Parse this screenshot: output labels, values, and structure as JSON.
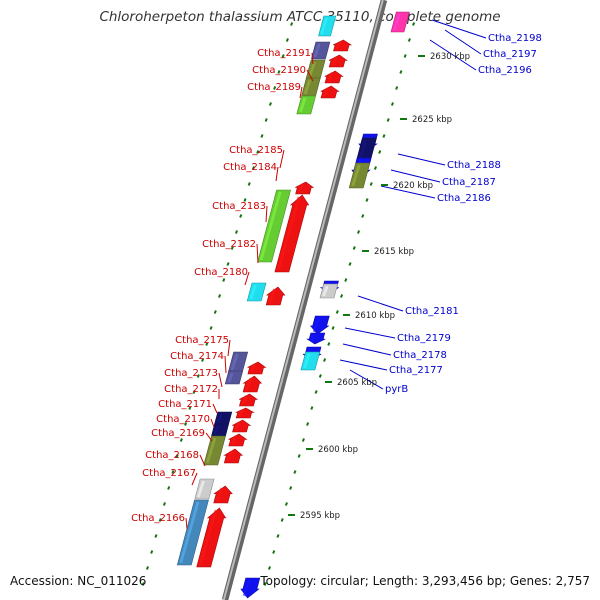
{
  "title": "Chloroherpeton thalassium ATCC 35110, complete genome",
  "footer": {
    "accession": "Accession: NC_011026",
    "topology": "Topology: circular; Length: 3,293,456 bp; Genes: 2,757"
  },
  "colors": {
    "backbone": "#999999",
    "forward": "#ee1111",
    "reverse": "#1111ee",
    "green": "#66cc33",
    "olive": "#778833",
    "purple": "#555599",
    "navy": "#111166",
    "cyan": "#22ddee",
    "steel": "#4488bb",
    "gray": "#cccccc",
    "pink": "#ff33aa",
    "tick": "#117711",
    "left_label": "#cc0000",
    "right_label": "#0000cc"
  },
  "kbp_marks": [
    "2630 kbp",
    "2625 kbp",
    "2620 kbp",
    "2615 kbp",
    "2610 kbp",
    "2605 kbp",
    "2600 kbp",
    "2595 kbp"
  ],
  "left_labels": [
    "Ctha_2191",
    "Ctha_2190",
    "Ctha_2189",
    "Ctha_2185",
    "Ctha_2184",
    "Ctha_2183",
    "Ctha_2182",
    "Ctha_2180",
    "Ctha_2175",
    "Ctha_2174",
    "Ctha_2173",
    "Ctha_2172",
    "Ctha_2171",
    "Ctha_2170",
    "Ctha_2169",
    "Ctha_2168",
    "Ctha_2167",
    "Ctha_2166"
  ],
  "right_labels": [
    "Ctha_2198",
    "Ctha_2197",
    "Ctha_2196",
    "Ctha_2188",
    "Ctha_2187",
    "Ctha_2186",
    "Ctha_2181",
    "Ctha_2179",
    "Ctha_2178",
    "Ctha_2177",
    "pyrB"
  ]
}
